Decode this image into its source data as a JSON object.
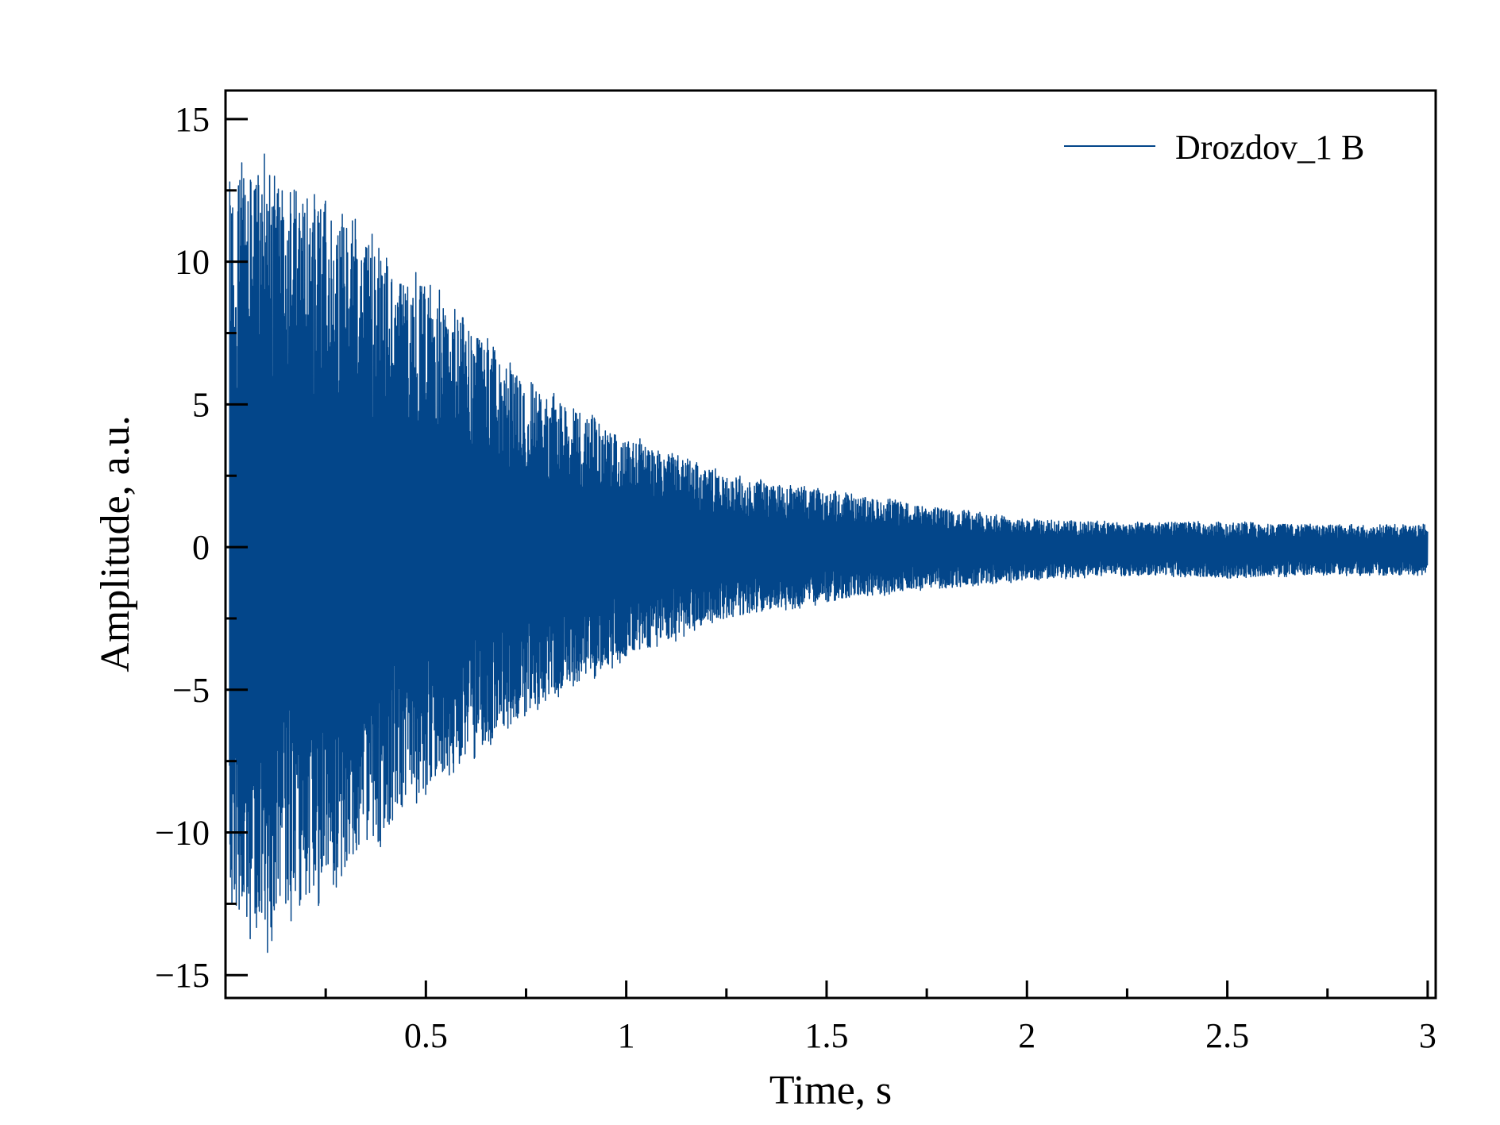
{
  "chart_data": {
    "type": "line",
    "xlabel": "Time, s",
    "ylabel": "Amplitude, a.u.",
    "xlim": [
      0.0,
      3.02
    ],
    "ylim": [
      -15.8,
      16.0
    ],
    "xticks": [
      0.5,
      1,
      1.5,
      2,
      2.5,
      3
    ],
    "xtick_labels": [
      "0.5",
      "1",
      "1.5",
      "2",
      "2.5",
      "3"
    ],
    "xminor_ticks": [
      0.25,
      0.75,
      1.25,
      1.75,
      2.25,
      2.75
    ],
    "yticks": [
      -15,
      -10,
      -5,
      0,
      5,
      10,
      15
    ],
    "ytick_labels": [
      "−15",
      "−10",
      "−5",
      "0",
      "5",
      "10",
      "15"
    ],
    "yminor_ticks": [
      -12.5,
      -7.5,
      -2.5,
      2.5,
      7.5,
      12.5
    ],
    "grid": false,
    "legend": {
      "position": "top-right",
      "entries": [
        {
          "name": "Drozdov_1 B",
          "color": "#03468a"
        }
      ]
    },
    "series": [
      {
        "name": "Drozdov_1 B",
        "color": "#03468a",
        "x": [
          0.01,
          0.1,
          0.25,
          0.5,
          0.75,
          1.0,
          1.25,
          1.5,
          1.75,
          2.0,
          2.25,
          2.5,
          2.75,
          3.0
        ],
        "upper_envelope": [
          13.5,
          13.8,
          12.5,
          9.5,
          6.0,
          4.0,
          2.6,
          2.0,
          1.5,
          1.0,
          0.9,
          0.9,
          0.8,
          0.8
        ],
        "lower_envelope": [
          -13.5,
          -14.3,
          -12.5,
          -9.0,
          -6.0,
          -4.0,
          -2.6,
          -2.0,
          -1.5,
          -1.2,
          -1.0,
          -1.1,
          -1.0,
          -1.0
        ]
      }
    ]
  }
}
